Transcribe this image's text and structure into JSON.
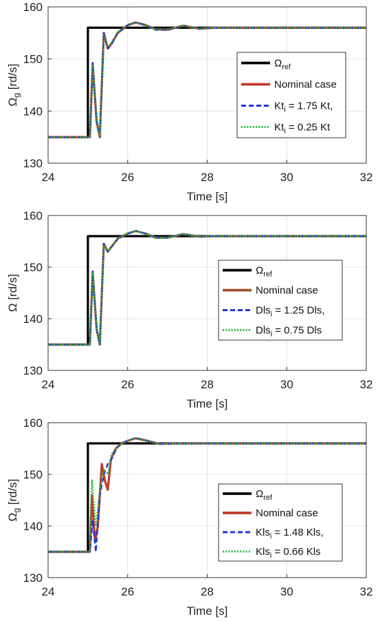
{
  "figure": {
    "panels": [
      {
        "chart_data": {
          "type": "line",
          "xlabel": "Time [s]",
          "ylabel": {
            "main": "Ω",
            "sub": "g",
            "unit": " [rd/s]"
          },
          "xlim": [
            24,
            32
          ],
          "ylim": [
            130,
            160
          ],
          "xticks": [
            "24",
            "26",
            "28",
            "30",
            "32"
          ],
          "yticks": [
            "130",
            "140",
            "150",
            "160"
          ],
          "grid": true,
          "legend_position": "right",
          "series": [
            {
              "name": {
                "main": "Ω",
                "sub": "ref",
                "tail": ""
              },
              "color": "#000000",
              "dash": "solid",
              "x": [
                24,
                25,
                25,
                32
              ],
              "y": [
                135,
                135,
                156,
                156
              ]
            },
            {
              "name": {
                "main": "Nominal case",
                "sub": "",
                "tail": ""
              },
              "color": "#c0392b",
              "dash": "solid",
              "x": [
                24,
                25.05,
                25.12,
                25.22,
                25.3,
                25.4,
                25.5,
                25.6,
                25.75,
                26.0,
                26.2,
                26.45,
                26.7,
                27.0,
                27.4,
                27.8,
                28.2,
                29,
                32
              ],
              "y": [
                135,
                135,
                149,
                138,
                135,
                155,
                152,
                153,
                155,
                156.5,
                157,
                156.5,
                155.7,
                155.6,
                156.4,
                155.8,
                156,
                156,
                156
              ]
            },
            {
              "name": {
                "main": "Kt",
                "sub": "i",
                "tail": " = 1.75 Kt,"
              },
              "color": "#2233dd",
              "dash": "dash",
              "x": [
                24,
                25.05,
                25.12,
                25.22,
                25.3,
                25.4,
                25.5,
                25.6,
                25.75,
                26.0,
                26.2,
                26.45,
                26.7,
                27.0,
                27.4,
                27.8,
                28.2,
                29,
                32
              ],
              "y": [
                135,
                135,
                149.3,
                138,
                135,
                155,
                152,
                153,
                155,
                156.5,
                157,
                156.5,
                155.6,
                155.6,
                156.4,
                155.8,
                156,
                156,
                156
              ]
            },
            {
              "name": {
                "main": "Kt",
                "sub": "i",
                "tail": " = 0.25 Kt"
              },
              "color": "#22bb33",
              "dash": "dot",
              "x": [
                24,
                25.05,
                25.12,
                25.22,
                25.3,
                25.4,
                25.5,
                25.6,
                25.75,
                26.0,
                26.2,
                26.45,
                26.7,
                27.0,
                27.4,
                27.8,
                28.2,
                29,
                32
              ],
              "y": [
                135,
                135,
                148.7,
                138.5,
                135.3,
                154.6,
                152.3,
                153.2,
                155.2,
                156.6,
                157,
                156.4,
                155.7,
                155.7,
                156.4,
                155.8,
                156,
                156,
                156
              ]
            }
          ]
        }
      },
      {
        "chart_data": {
          "type": "line",
          "xlabel": "Time [s]",
          "ylabel": {
            "main": "Ω",
            "sub": "",
            "unit": " [rd/s]"
          },
          "xlim": [
            24,
            32
          ],
          "ylim": [
            130,
            160
          ],
          "xticks": [
            "24",
            "26",
            "28",
            "30",
            "32"
          ],
          "yticks": [
            "130",
            "140",
            "150",
            "160"
          ],
          "grid": true,
          "legend_position": "right",
          "series": [
            {
              "name": {
                "main": "Ω",
                "sub": "ref",
                "tail": ""
              },
              "color": "#000000",
              "dash": "solid",
              "x": [
                24,
                25,
                25,
                32
              ],
              "y": [
                135,
                135,
                156,
                156
              ]
            },
            {
              "name": {
                "main": "Nominal case",
                "sub": "",
                "tail": ""
              },
              "color": "#a0522d",
              "dash": "solid",
              "x": [
                24,
                25.05,
                25.12,
                25.22,
                25.3,
                25.4,
                25.5,
                25.6,
                25.75,
                26.0,
                26.2,
                26.45,
                26.7,
                27.0,
                27.4,
                27.8,
                28.2,
                29,
                32
              ],
              "y": [
                135,
                135,
                149,
                138,
                135,
                154.5,
                153,
                154,
                155.5,
                156.5,
                157,
                156.5,
                155.7,
                155.7,
                156.4,
                155.9,
                156,
                156,
                156
              ]
            },
            {
              "name": {
                "main": "Dls",
                "sub": "i",
                "tail": " = 1.25 Dls,"
              },
              "color": "#2233dd",
              "dash": "dash",
              "x": [
                24,
                25.05,
                25.12,
                25.22,
                25.3,
                25.4,
                25.5,
                25.6,
                25.75,
                26.0,
                26.2,
                26.45,
                26.7,
                27.0,
                27.4,
                27.8,
                28.2,
                29,
                32
              ],
              "y": [
                135,
                135,
                149.2,
                138,
                135,
                154.5,
                153,
                154,
                155.5,
                156.5,
                157,
                156.5,
                155.7,
                155.7,
                156.4,
                155.9,
                156,
                156,
                156
              ]
            },
            {
              "name": {
                "main": "Dls",
                "sub": "i",
                "tail": " = 0.75 Dls"
              },
              "color": "#22bb33",
              "dash": "dot",
              "x": [
                24,
                25.05,
                25.12,
                25.22,
                25.3,
                25.4,
                25.5,
                25.6,
                25.75,
                26.0,
                26.2,
                26.45,
                26.7,
                27.0,
                27.4,
                27.8,
                28.2,
                29,
                32
              ],
              "y": [
                135,
                135,
                148.8,
                138.3,
                135.2,
                154.3,
                153.2,
                154.1,
                155.6,
                156.6,
                157,
                156.4,
                155.7,
                155.7,
                156.4,
                155.9,
                156,
                156,
                156
              ]
            }
          ]
        }
      },
      {
        "chart_data": {
          "type": "line",
          "xlabel": "Time [s]",
          "ylabel": {
            "main": "Ω",
            "sub": "g",
            "unit": " [rd/s]"
          },
          "xlim": [
            24,
            32
          ],
          "ylim": [
            130,
            160
          ],
          "xticks": [
            "24",
            "26",
            "28",
            "30",
            "32"
          ],
          "yticks": [
            "130",
            "140",
            "150",
            "160"
          ],
          "grid": true,
          "legend_position": "right",
          "series": [
            {
              "name": {
                "main": "Ω",
                "sub": "ref",
                "tail": ""
              },
              "color": "#000000",
              "dash": "solid",
              "x": [
                24,
                25,
                25,
                32
              ],
              "y": [
                135,
                135,
                156,
                156
              ]
            },
            {
              "name": {
                "main": "Nominal case",
                "sub": "",
                "tail": ""
              },
              "color": "#c0392b",
              "dash": "solid",
              "x": [
                24,
                25.05,
                25.1,
                25.18,
                25.25,
                25.35,
                25.42,
                25.5,
                25.58,
                25.7,
                25.85,
                26.0,
                26.2,
                26.5,
                26.8,
                27.2,
                32
              ],
              "y": [
                135,
                135,
                146,
                137,
                140,
                152,
                149,
                147,
                153,
                155,
                156,
                156.5,
                157,
                156.5,
                155.9,
                156,
                156
              ]
            },
            {
              "name": {
                "main": "Kls",
                "sub": "i",
                "tail": " = 1.48 Kls,"
              },
              "color": "#2233dd",
              "dash": "dash",
              "x": [
                24,
                25.05,
                25.12,
                25.2,
                25.3,
                25.4,
                25.5,
                25.6,
                25.72,
                25.85,
                26.0,
                26.2,
                26.5,
                26.8,
                27.2,
                32
              ],
              "y": [
                135,
                135,
                141,
                135,
                146,
                150,
                152,
                153,
                155,
                156,
                156.5,
                157,
                156.5,
                155.9,
                156,
                156
              ]
            },
            {
              "name": {
                "main": "Kls",
                "sub": "i",
                "tail": " = 0.66 Kls"
              },
              "color": "#22bb33",
              "dash": "dot",
              "x": [
                24,
                25.05,
                25.1,
                25.2,
                25.3,
                25.4,
                25.5,
                25.6,
                25.7,
                25.85,
                26.0,
                26.2,
                26.5,
                26.8,
                27.2,
                32
              ],
              "y": [
                135,
                135,
                149,
                140,
                147,
                151,
                150,
                154,
                155,
                156,
                156.5,
                157,
                156.5,
                155.9,
                156,
                156
              ]
            }
          ]
        }
      }
    ]
  }
}
